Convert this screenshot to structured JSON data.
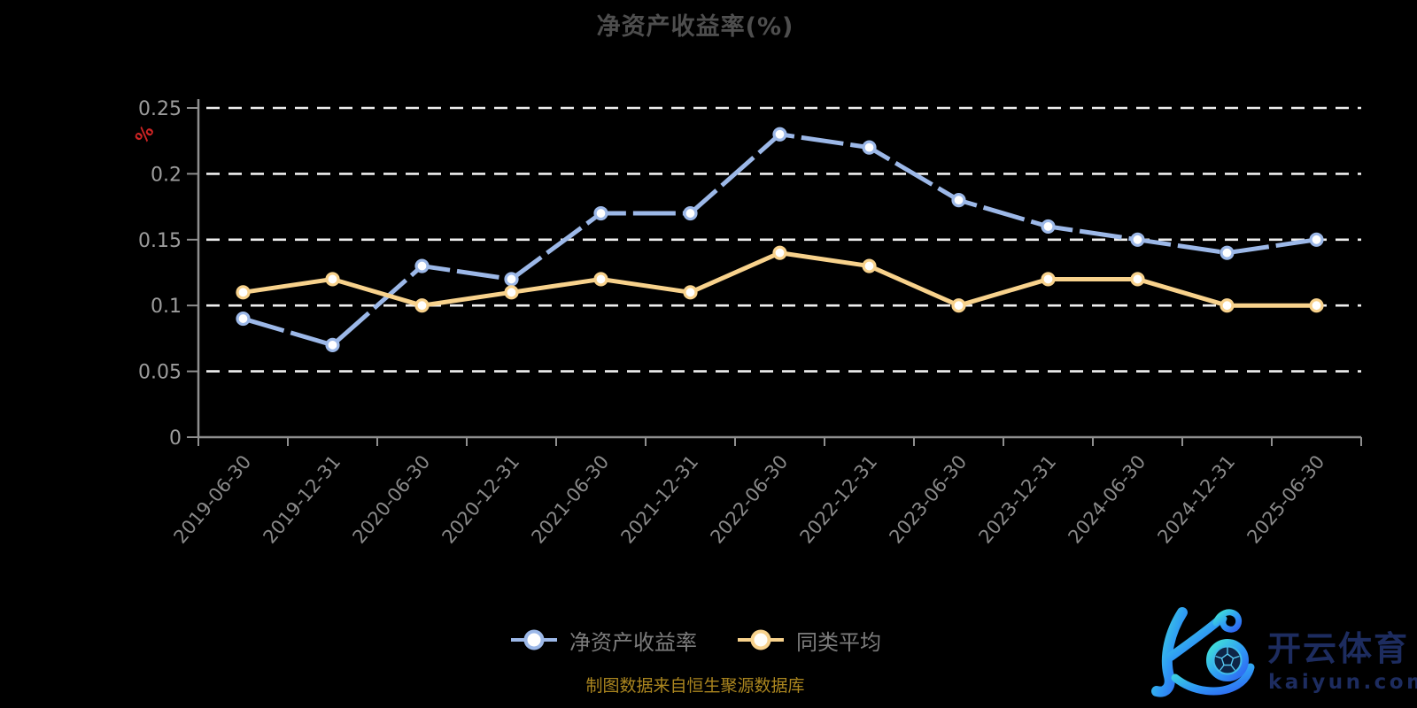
{
  "title": {
    "text": "净资产收益率(%)",
    "color": "#4e4e4e"
  },
  "y_axis": {
    "unit_label": "%",
    "unit_color": "#cc2424",
    "ticks": [
      "0",
      "0.05",
      "0.1",
      "0.15",
      "0.2",
      "0.25"
    ],
    "label_color": "#9c9c9c"
  },
  "x_axis": {
    "label_color": "#8a8a8a"
  },
  "axis_line_color": "#8f8f8f",
  "grid_line_color": "#efefef",
  "legend": {
    "text_color": "#7c7c7c",
    "items": [
      {
        "label": "净资产收益率",
        "color": "#9cb8e8"
      },
      {
        "label": "同类平均",
        "color": "#f8d28c"
      }
    ]
  },
  "footer": {
    "source_note": "制图数据来自恒生聚源数据库",
    "color": "#aa851f"
  },
  "logo": {
    "cn_text": "开云体育",
    "domain_text": "kaiyun.com",
    "text_color": "#1d2c5f",
    "gradient_start": "#42e6d6",
    "gradient_end": "#2f63f2"
  },
  "chart_data": {
    "type": "line",
    "title": "净资产收益率(%)",
    "xlabel": "",
    "ylabel": "%",
    "ylim": [
      0,
      0.25
    ],
    "yticks": [
      0,
      0.05,
      0.1,
      0.15,
      0.2,
      0.25
    ],
    "grid": "horizontal white dashed lines",
    "legend_position": "bottom",
    "categories": [
      "2019-06-30",
      "2019-12-31",
      "2020-06-30",
      "2020-12-31",
      "2021-06-30",
      "2021-12-31",
      "2022-06-30",
      "2022-12-31",
      "2023-06-30",
      "2023-12-31",
      "2024-06-30",
      "2024-12-31",
      "2025-06-30"
    ],
    "series": [
      {
        "name": "净资产收益率",
        "color": "#9cb8e8",
        "line_style": "dashed",
        "marker": "circle-white-fill",
        "values": [
          0.09,
          0.07,
          0.13,
          0.12,
          0.17,
          0.17,
          0.23,
          0.22,
          0.18,
          0.16,
          0.15,
          0.14,
          0.15
        ]
      },
      {
        "name": "同类平均",
        "color": "#f8d28c",
        "line_style": "solid",
        "marker": "circle-white-fill",
        "values": [
          0.11,
          0.12,
          0.1,
          0.11,
          0.12,
          0.11,
          0.14,
          0.13,
          0.1,
          0.12,
          0.12,
          0.1,
          0.1
        ]
      }
    ]
  }
}
